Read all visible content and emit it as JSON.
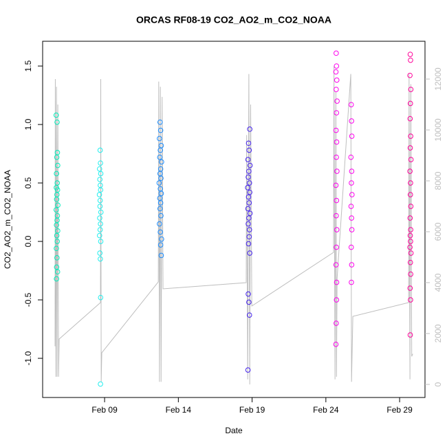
{
  "chart_data": {
    "type": "scatter",
    "title": "ORCAS RF08-19 CO2_AO2_m_CO2_NOAA",
    "x_label": "Date",
    "y_label": "CO2_AO2_m_CO2_NOAA",
    "xlim": [
      4.8,
      30.72
    ],
    "xticks": [
      {
        "value": 9,
        "label": "Feb 09"
      },
      {
        "value": 14,
        "label": "Feb 14"
      },
      {
        "value": 19,
        "label": "Feb 19"
      },
      {
        "value": 24,
        "label": "Feb 24"
      },
      {
        "value": 29,
        "label": "Feb 29"
      }
    ],
    "ylim": [
      -1.335,
      1.712
    ],
    "yticks": [
      {
        "value": -1,
        "label": "-1.0"
      },
      -0.5,
      {
        "value": 0,
        "label": "0.0"
      },
      0.5,
      {
        "value": 1,
        "label": "1.0"
      },
      1.5
    ],
    "y2lim": [
      -514,
      13486
    ],
    "y2ticks": [
      0,
      2000,
      4000,
      6000,
      8000,
      10000,
      12000
    ],
    "y2_color": "#bebebe",
    "series": [
      {
        "type": "line",
        "axis": "y2",
        "color": "#bebebe",
        "x": [
          5.64,
          5.66,
          5.7,
          5.74,
          5.78,
          5.83,
          5.88,
          5.92,
          8.72,
          8.74,
          8.77,
          8.81,
          12.64,
          12.67,
          12.72,
          12.78,
          12.83,
          12.9,
          12.96,
          18.6,
          18.63,
          18.7,
          18.78,
          18.84,
          18.9,
          18.98,
          24.52,
          24.55,
          24.62,
          24.68,
          24.72,
          24.76,
          25.69,
          25.74,
          25.83,
          29.61,
          29.64,
          29.7,
          29.76,
          29.82,
          29.89
        ],
        "values": [
          1500,
          12000,
          300,
          11700,
          300,
          11000,
          300,
          1784,
          3216,
          12000,
          100,
          1243,
          4027,
          11900,
          100,
          11700,
          100,
          11300,
          3757,
          4000,
          9800,
          200,
          12200,
          0,
          11000,
          3081,
          5189,
          12500,
          200,
          11500,
          300,
          4162,
          12200,
          100,
          2676,
          3216,
          12200,
          200,
          11800,
          1100,
          1200
        ]
      },
      {
        "color": "#00eebb",
        "x": [
          5.72,
          5.78,
          5.8,
          5.76,
          5.82,
          5.74,
          5.79,
          5.73,
          5.81,
          5.77,
          5.75,
          5.83,
          5.72,
          5.8,
          5.78,
          5.74,
          5.82,
          5.76,
          5.79,
          5.73,
          5.77,
          5.75,
          5.81,
          5.74
        ],
        "values": [
          1.08,
          1.02,
          0.76,
          0.72,
          0.65,
          0.58,
          0.5,
          0.46,
          0.44,
          0.4,
          0.36,
          0.31,
          0.27,
          0.22,
          0.18,
          0.14,
          0.09,
          0.05,
          0.0,
          -0.06,
          -0.14,
          -0.22,
          -0.26,
          -0.32
        ]
      },
      {
        "color": "#22eeee",
        "x": [
          8.7,
          8.72,
          8.66,
          8.74,
          8.68,
          8.71,
          8.73,
          8.65,
          8.7,
          8.69,
          8.75,
          8.67,
          8.72,
          8.7,
          8.66,
          8.74,
          8.68,
          8.71,
          8.73,
          8.72
        ],
        "values": [
          0.78,
          0.67,
          0.62,
          0.58,
          0.53,
          0.48,
          0.44,
          0.4,
          0.35,
          0.3,
          0.25,
          0.2,
          0.15,
          0.1,
          0.05,
          0.0,
          -0.1,
          -0.15,
          -0.48,
          -1.22
        ]
      },
      {
        "color": "#1a8cff",
        "x": [
          12.76,
          12.8,
          12.72,
          12.84,
          12.78,
          12.74,
          12.86,
          12.8,
          12.76,
          12.82,
          12.7,
          12.78,
          12.84,
          12.74,
          12.8,
          12.76,
          12.82,
          12.72,
          12.78,
          12.86,
          12.8,
          12.84
        ],
        "values": [
          1.02,
          0.95,
          0.88,
          0.82,
          0.78,
          0.72,
          0.68,
          0.62,
          0.58,
          0.54,
          0.5,
          0.45,
          0.41,
          0.37,
          0.33,
          0.28,
          0.22,
          0.15,
          0.08,
          0.02,
          -0.03,
          -0.12
        ]
      },
      {
        "color": "#4422ee",
        "x": [
          18.84,
          18.76,
          18.8,
          18.72,
          18.86,
          18.78,
          18.74,
          18.82,
          18.7,
          18.84,
          18.76,
          18.8,
          18.72,
          18.86,
          18.78,
          18.74,
          18.82,
          18.8,
          18.76,
          18.84,
          18.74,
          18.78,
          18.82,
          18.72
        ],
        "values": [
          0.96,
          0.84,
          0.78,
          0.7,
          0.65,
          0.6,
          0.55,
          0.5,
          0.46,
          0.42,
          0.38,
          0.33,
          0.28,
          0.24,
          0.2,
          0.15,
          0.1,
          0.04,
          -0.02,
          -0.1,
          -0.45,
          -0.52,
          -0.63,
          -1.1
        ]
      },
      {
        "color": "#ff00ee",
        "x": [
          24.7,
          24.72,
          24.68,
          24.74,
          24.7,
          24.76,
          24.72,
          24.69,
          24.73,
          24.71,
          24.75,
          24.68,
          24.72,
          24.7,
          24.74,
          24.71,
          24.69,
          24.73,
          24.72,
          24.7,
          24.68,
          25.72,
          25.74,
          25.76,
          25.7,
          25.75,
          25.73,
          25.77,
          25.71,
          25.74,
          25.76,
          25.72,
          25.75,
          25.73
        ],
        "values": [
          1.61,
          1.5,
          1.45,
          1.38,
          1.3,
          1.2,
          1.1,
          0.95,
          0.85,
          0.72,
          0.6,
          0.48,
          0.35,
          0.22,
          0.1,
          -0.05,
          -0.2,
          -0.35,
          -0.5,
          -0.7,
          -0.88,
          1.17,
          1.03,
          0.9,
          0.72,
          0.6,
          0.5,
          0.4,
          0.3,
          0.2,
          0.1,
          -0.05,
          -0.2,
          -0.35
        ]
      },
      {
        "color": "#ff0099",
        "x": [
          29.72,
          29.74,
          29.7,
          29.76,
          29.73,
          29.71,
          29.75,
          29.72,
          29.77,
          29.7,
          29.74,
          29.73,
          29.76,
          29.71,
          29.75,
          29.72,
          29.74,
          29.7,
          29.77,
          29.73,
          29.75,
          29.71,
          29.74,
          29.72
        ],
        "values": [
          1.6,
          1.55,
          1.42,
          1.3,
          1.18,
          1.05,
          0.9,
          0.8,
          0.7,
          0.6,
          0.5,
          0.4,
          0.3,
          0.2,
          0.1,
          0.05,
          0.0,
          -0.05,
          -0.1,
          -0.18,
          -0.28,
          -0.4,
          -0.5,
          -0.8
        ]
      }
    ]
  }
}
